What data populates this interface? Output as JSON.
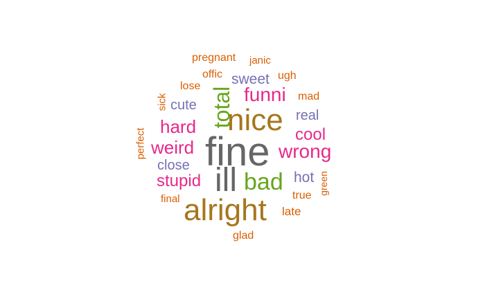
{
  "colors": {
    "gray": "#666666",
    "olive": "#A6761D",
    "magenta": "#E7298A",
    "green": "#66A61E",
    "orange": "#D95F02",
    "purple": "#7570B3"
  },
  "words": [
    {
      "text": "fine",
      "color": "gray"
    },
    {
      "text": "nice",
      "color": "olive"
    },
    {
      "text": "alright",
      "color": "olive"
    },
    {
      "text": "ill",
      "color": "gray"
    },
    {
      "text": "bad",
      "color": "green"
    },
    {
      "text": "total",
      "color": "green"
    },
    {
      "text": "wrong",
      "color": "magenta"
    },
    {
      "text": "funni",
      "color": "magenta"
    },
    {
      "text": "weird",
      "color": "magenta"
    },
    {
      "text": "hard",
      "color": "magenta"
    },
    {
      "text": "stupid",
      "color": "magenta"
    },
    {
      "text": "cool",
      "color": "magenta"
    },
    {
      "text": "sweet",
      "color": "purple"
    },
    {
      "text": "close",
      "color": "purple"
    },
    {
      "text": "cute",
      "color": "purple"
    },
    {
      "text": "real",
      "color": "purple"
    },
    {
      "text": "hot",
      "color": "purple"
    },
    {
      "text": "pregnant",
      "color": "orange"
    },
    {
      "text": "janic",
      "color": "orange"
    },
    {
      "text": "offic",
      "color": "orange"
    },
    {
      "text": "ugh",
      "color": "orange"
    },
    {
      "text": "lose",
      "color": "orange"
    },
    {
      "text": "mad",
      "color": "orange"
    },
    {
      "text": "sick",
      "color": "orange"
    },
    {
      "text": "perfect",
      "color": "orange"
    },
    {
      "text": "green",
      "color": "orange"
    },
    {
      "text": "true",
      "color": "orange"
    },
    {
      "text": "final",
      "color": "orange"
    },
    {
      "text": "late",
      "color": "orange"
    },
    {
      "text": "glad",
      "color": "orange"
    }
  ]
}
